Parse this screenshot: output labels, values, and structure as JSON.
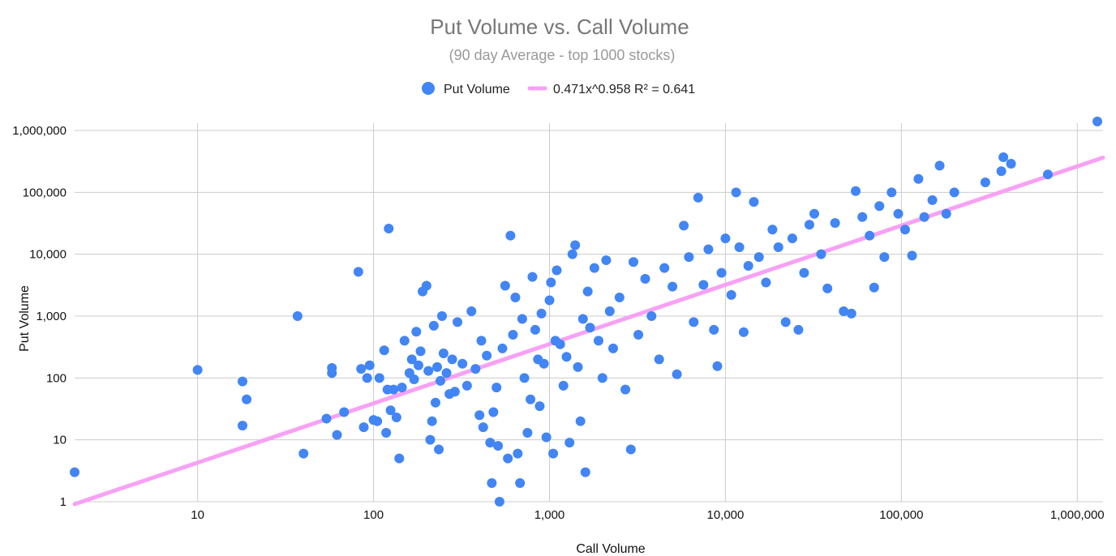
{
  "chart_data": {
    "type": "scatter",
    "title": "Put Volume vs. Call Volume",
    "subtitle": "(90 day Average - top 1000 stocks)",
    "xlabel": "Call Volume",
    "ylabel": "Put Volume",
    "x_scale": "log",
    "y_scale": "log",
    "xlim": [
      2,
      1400000
    ],
    "ylim": [
      1,
      1000000
    ],
    "x_ticks": [
      10,
      100,
      1000,
      10000,
      100000,
      1000000
    ],
    "x_tick_labels": [
      "10",
      "100",
      "1,000",
      "10,000",
      "100,000",
      "1,000,000"
    ],
    "y_ticks": [
      1,
      10,
      100,
      1000,
      10000,
      100000,
      1000000
    ],
    "y_tick_labels": [
      "1",
      "10",
      "100",
      "1,000",
      "10,000",
      "100,000",
      "1,000,000"
    ],
    "grid": true,
    "legend_position": "top",
    "colors": {
      "point": "#4285F4",
      "trendline": "#F7A1F5",
      "grid": "#CCCCCC"
    },
    "series": [
      {
        "name": "Put Volume",
        "points": [
          [
            2,
            3
          ],
          [
            10,
            135
          ],
          [
            18,
            88
          ],
          [
            18,
            17
          ],
          [
            19,
            45
          ],
          [
            37,
            1000
          ],
          [
            40,
            6
          ],
          [
            54,
            22
          ],
          [
            58,
            120
          ],
          [
            58,
            145
          ],
          [
            62,
            12
          ],
          [
            68,
            28
          ],
          [
            82,
            5200
          ],
          [
            85,
            140
          ],
          [
            88,
            16
          ],
          [
            92,
            100
          ],
          [
            95,
            160
          ],
          [
            100,
            21
          ],
          [
            105,
            20
          ],
          [
            108,
            100
          ],
          [
            115,
            280
          ],
          [
            118,
            13
          ],
          [
            120,
            65
          ],
          [
            122,
            26000
          ],
          [
            125,
            30
          ],
          [
            130,
            65
          ],
          [
            135,
            23
          ],
          [
            140,
            5
          ],
          [
            145,
            70
          ],
          [
            150,
            400
          ],
          [
            160,
            120
          ],
          [
            165,
            200
          ],
          [
            170,
            95
          ],
          [
            175,
            560
          ],
          [
            180,
            160
          ],
          [
            185,
            270
          ],
          [
            190,
            2500
          ],
          [
            200,
            3100
          ],
          [
            205,
            130
          ],
          [
            210,
            10
          ],
          [
            215,
            20
          ],
          [
            220,
            700
          ],
          [
            225,
            40
          ],
          [
            230,
            150
          ],
          [
            235,
            7
          ],
          [
            240,
            90
          ],
          [
            245,
            1000
          ],
          [
            250,
            250
          ],
          [
            260,
            120
          ],
          [
            270,
            55
          ],
          [
            280,
            200
          ],
          [
            290,
            60
          ],
          [
            300,
            800
          ],
          [
            320,
            170
          ],
          [
            340,
            75
          ],
          [
            360,
            1200
          ],
          [
            380,
            140
          ],
          [
            400,
            25
          ],
          [
            410,
            400
          ],
          [
            420,
            16
          ],
          [
            440,
            230
          ],
          [
            460,
            9
          ],
          [
            470,
            2
          ],
          [
            480,
            28
          ],
          [
            500,
            70
          ],
          [
            510,
            8
          ],
          [
            520,
            1
          ],
          [
            540,
            300
          ],
          [
            560,
            3100
          ],
          [
            580,
            5
          ],
          [
            600,
            20000
          ],
          [
            620,
            500
          ],
          [
            640,
            2000
          ],
          [
            660,
            6
          ],
          [
            680,
            2
          ],
          [
            700,
            900
          ],
          [
            720,
            100
          ],
          [
            750,
            13
          ],
          [
            780,
            45
          ],
          [
            800,
            4300
          ],
          [
            830,
            600
          ],
          [
            860,
            200
          ],
          [
            880,
            35
          ],
          [
            900,
            1100
          ],
          [
            930,
            170
          ],
          [
            960,
            11
          ],
          [
            1000,
            1800
          ],
          [
            1020,
            3500
          ],
          [
            1050,
            6
          ],
          [
            1080,
            400
          ],
          [
            1100,
            5500
          ],
          [
            1150,
            350
          ],
          [
            1200,
            75
          ],
          [
            1250,
            220
          ],
          [
            1300,
            9
          ],
          [
            1350,
            10000
          ],
          [
            1400,
            14000
          ],
          [
            1450,
            150
          ],
          [
            1500,
            20
          ],
          [
            1550,
            900
          ],
          [
            1600,
            3
          ],
          [
            1650,
            2500
          ],
          [
            1700,
            650
          ],
          [
            1800,
            6000
          ],
          [
            1900,
            400
          ],
          [
            2000,
            100
          ],
          [
            2100,
            8000
          ],
          [
            2200,
            1200
          ],
          [
            2300,
            300
          ],
          [
            2500,
            2000
          ],
          [
            2700,
            65
          ],
          [
            2900,
            7
          ],
          [
            3000,
            7500
          ],
          [
            3200,
            500
          ],
          [
            3500,
            4000
          ],
          [
            3800,
            1000
          ],
          [
            4200,
            200
          ],
          [
            4500,
            6000
          ],
          [
            5000,
            3000
          ],
          [
            5300,
            115
          ],
          [
            5800,
            29000
          ],
          [
            6200,
            9000
          ],
          [
            6600,
            800
          ],
          [
            7000,
            82000
          ],
          [
            7500,
            3200
          ],
          [
            8000,
            12000
          ],
          [
            8600,
            600
          ],
          [
            9000,
            155
          ],
          [
            9500,
            5000
          ],
          [
            10000,
            18000
          ],
          [
            10800,
            2200
          ],
          [
            11500,
            100000
          ],
          [
            12000,
            13000
          ],
          [
            12700,
            550
          ],
          [
            13500,
            6500
          ],
          [
            14500,
            70000
          ],
          [
            15500,
            9000
          ],
          [
            17000,
            3500
          ],
          [
            18500,
            25000
          ],
          [
            20000,
            13000
          ],
          [
            22000,
            800
          ],
          [
            24000,
            18000
          ],
          [
            26000,
            600
          ],
          [
            28000,
            5000
          ],
          [
            30000,
            30000
          ],
          [
            32000,
            45000
          ],
          [
            35000,
            10000
          ],
          [
            38000,
            2800
          ],
          [
            42000,
            32000
          ],
          [
            47000,
            1200
          ],
          [
            52000,
            1100
          ],
          [
            55000,
            105000
          ],
          [
            60000,
            40000
          ],
          [
            66000,
            20000
          ],
          [
            70000,
            2900
          ],
          [
            75000,
            60000
          ],
          [
            80000,
            9000
          ],
          [
            88000,
            100000
          ],
          [
            96000,
            45000
          ],
          [
            105000,
            25000
          ],
          [
            115000,
            9500
          ],
          [
            125000,
            165000
          ],
          [
            135000,
            40000
          ],
          [
            150000,
            75000
          ],
          [
            165000,
            270000
          ],
          [
            180000,
            45000
          ],
          [
            200000,
            100000
          ],
          [
            300000,
            145000
          ],
          [
            370000,
            220000
          ],
          [
            380000,
            370000
          ],
          [
            420000,
            290000
          ],
          [
            680000,
            195000
          ],
          [
            1300000,
            1400000
          ]
        ]
      },
      {
        "name": "0.471x^0.958 R² = 0.641",
        "type": "trendline",
        "equation": "0.471x^0.958",
        "r2": 0.641
      }
    ]
  }
}
